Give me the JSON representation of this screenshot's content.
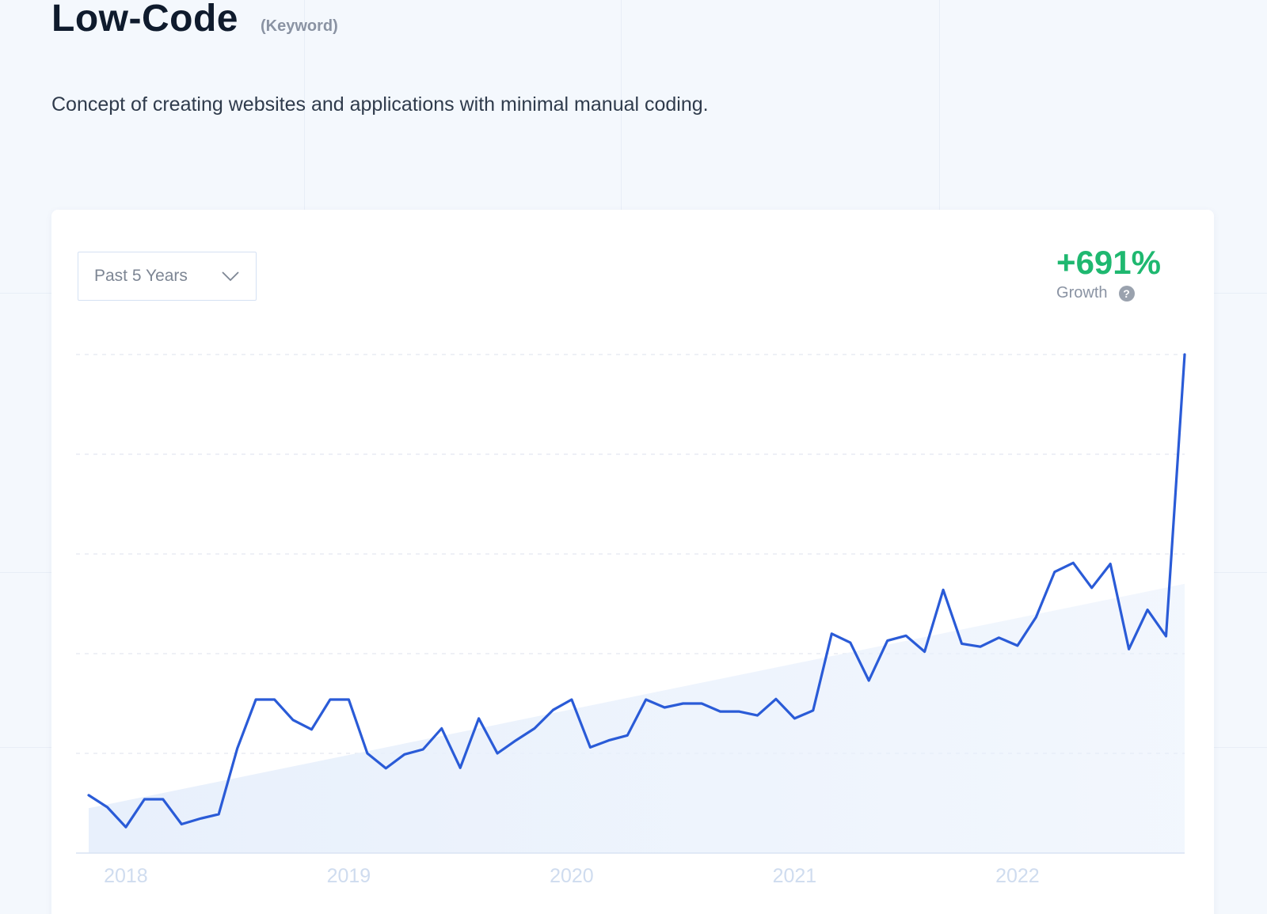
{
  "header": {
    "title": "Low-Code",
    "badge": "(Keyword)",
    "description": "Concept of creating websites and applications with minimal manual coding."
  },
  "controls": {
    "range_select": "Past 5 Years",
    "chevron_icon": "chevron-down-icon"
  },
  "growth": {
    "value": "+691%",
    "label": "Growth",
    "help_icon": "question-circle-icon",
    "help_glyph": "?",
    "color": "#1fb870"
  },
  "colors": {
    "line": "#2a5bd7",
    "trend_fill": "#e8f0fc",
    "tick_text": "#cfdcef"
  },
  "chart_data": {
    "type": "line",
    "x_ticks": [
      "2018",
      "2019",
      "2020",
      "2021",
      "2022"
    ],
    "ylim": [
      0,
      100
    ],
    "grid": "horizontal dashed",
    "series": [
      {
        "values": [
          11.6,
          9.2,
          5.2,
          10.8,
          10.8,
          5.8,
          6.9,
          7.8,
          21,
          30.8,
          30.8,
          26.7,
          24.8,
          30.8,
          30.8,
          20,
          17,
          19.8,
          20.8,
          25,
          17.1,
          27,
          20,
          22.6,
          25,
          28.7,
          30.8,
          21.2,
          22.6,
          23.6,
          30.8,
          29.2,
          30,
          30,
          28.4,
          28.4,
          27.6,
          30.9,
          27,
          28.6,
          44,
          42.2,
          34.6,
          42.6,
          43.6,
          40.4,
          52.8,
          42,
          41.4,
          43.2,
          41.6,
          47.3,
          56.4,
          58.2,
          53.2,
          58,
          40.9,
          48.8,
          43.5,
          100
        ]
      }
    ],
    "trend": {
      "start": 9,
      "end": 54
    }
  }
}
